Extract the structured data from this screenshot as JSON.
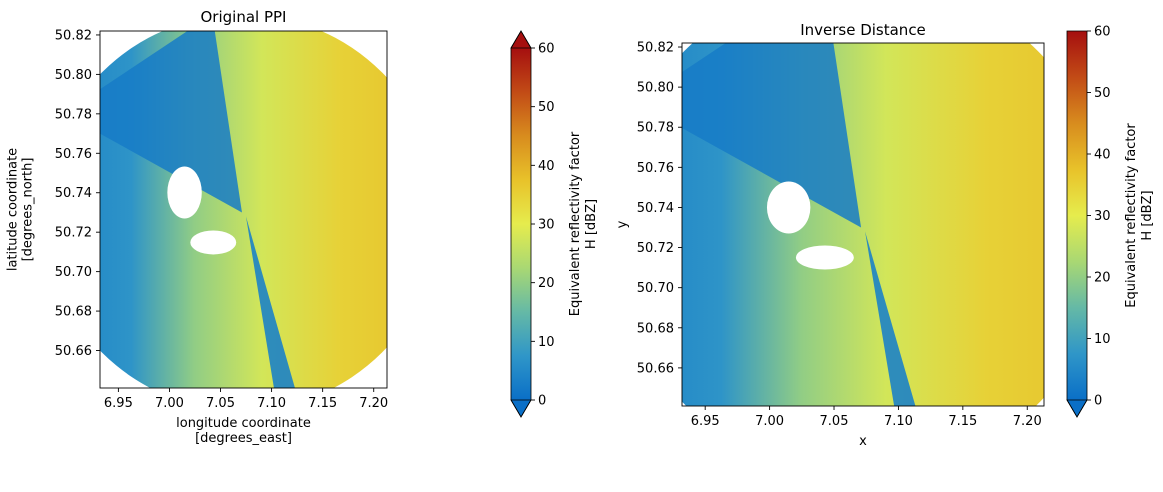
{
  "chart_data": [
    {
      "type": "heatmap",
      "title": "Original PPI",
      "xlabel": [
        "longitude coordinate",
        "[degrees_east]"
      ],
      "ylabel": [
        "latitude coordinate",
        "[degrees_north]"
      ],
      "xlim": [
        6.932,
        7.213
      ],
      "ylim": [
        50.641,
        50.822
      ],
      "xticks": [
        "6.95",
        "7.00",
        "7.05",
        "7.10",
        "7.15",
        "7.20"
      ],
      "yticks": [
        "50.66",
        "50.68",
        "50.70",
        "50.72",
        "50.74",
        "50.76",
        "50.78",
        "50.80",
        "50.82"
      ],
      "radar_center": [
        7.071,
        50.73
      ],
      "colorbar": {
        "label": [
          "Equivalent reflectivity factor",
          "H [dBZ]"
        ],
        "ticks": [
          "0",
          "10",
          "20",
          "30",
          "40",
          "50",
          "60"
        ],
        "range": [
          0,
          60
        ],
        "extend": "both",
        "colors": [
          "#0a6fc7",
          "#2f96c8",
          "#65b9a6",
          "#a9d873",
          "#e6ec4d",
          "#e8c22a",
          "#d88c1e",
          "#c24b16",
          "#a50f0f"
        ]
      }
    },
    {
      "type": "heatmap",
      "title": "Inverse Distance",
      "xlabel": [
        "x"
      ],
      "ylabel": [
        "y"
      ],
      "xlim": [
        6.932,
        7.213
      ],
      "ylim": [
        50.641,
        50.822
      ],
      "xticks": [
        "6.95",
        "7.00",
        "7.05",
        "7.10",
        "7.15",
        "7.20"
      ],
      "yticks": [
        "50.66",
        "50.68",
        "50.70",
        "50.72",
        "50.74",
        "50.76",
        "50.78",
        "50.80",
        "50.82"
      ],
      "radar_center": [
        7.071,
        50.73
      ],
      "colorbar": {
        "label": [
          "Equivalent reflectivity factor",
          "H [dBZ]"
        ],
        "ticks": [
          "0",
          "10",
          "20",
          "30",
          "40",
          "50",
          "60"
        ],
        "range": [
          0,
          60
        ],
        "extend": "min",
        "colors": [
          "#0a6fc7",
          "#2f96c8",
          "#65b9a6",
          "#a9d873",
          "#e6ec4d",
          "#e8c22a",
          "#d88c1e",
          "#c24b16",
          "#a50f0f"
        ]
      }
    }
  ]
}
